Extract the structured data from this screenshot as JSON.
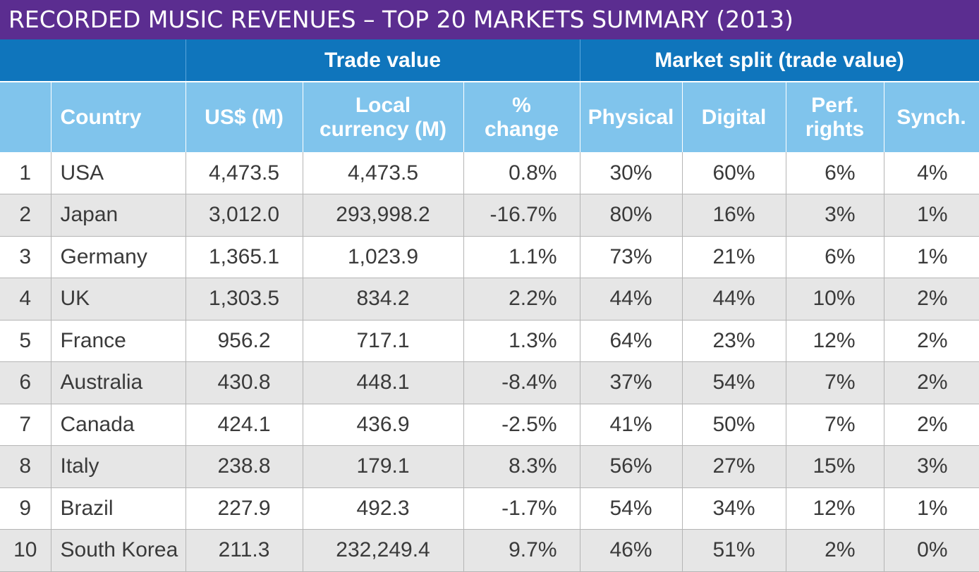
{
  "title": "RECORDED MUSIC REVENUES – TOP 20 MARKETS SUMMARY (2013)",
  "colors": {
    "title_bg": "#5b2d90",
    "group_header_bg": "#0f75bc",
    "column_header_bg": "#80c4ec",
    "alt_row_bg": "#e6e6e6"
  },
  "group_headers": {
    "trade_value": "Trade value",
    "market_split": "Market split (trade value)"
  },
  "columns": {
    "country": "Country",
    "usd": "US$ (M)",
    "local_line1": "Local",
    "local_line2": "currency (M)",
    "change_line1": "%",
    "change_line2": "change",
    "physical": "Physical",
    "digital": "Digital",
    "perf_line1": "Perf.",
    "perf_line2": "rights",
    "synch": "Synch."
  },
  "chart_data": {
    "type": "table",
    "title": "RECORDED MUSIC REVENUES – TOP 20 MARKETS SUMMARY (2013)",
    "rows": [
      {
        "rank": "1",
        "country": "USA",
        "usd": "4,473.5",
        "local": "4,473.5",
        "change": "0.8%",
        "physical": "30%",
        "digital": "60%",
        "perf": "6%",
        "synch": "4%"
      },
      {
        "rank": "2",
        "country": "Japan",
        "usd": "3,012.0",
        "local": "293,998.2",
        "change": "-16.7%",
        "physical": "80%",
        "digital": "16%",
        "perf": "3%",
        "synch": "1%"
      },
      {
        "rank": "3",
        "country": "Germany",
        "usd": "1,365.1",
        "local": "1,023.9",
        "change": "1.1%",
        "physical": "73%",
        "digital": "21%",
        "perf": "6%",
        "synch": "1%"
      },
      {
        "rank": "4",
        "country": "UK",
        "usd": "1,303.5",
        "local": "834.2",
        "change": "2.2%",
        "physical": "44%",
        "digital": "44%",
        "perf": "10%",
        "synch": "2%"
      },
      {
        "rank": "5",
        "country": "France",
        "usd": "956.2",
        "local": "717.1",
        "change": "1.3%",
        "physical": "64%",
        "digital": "23%",
        "perf": "12%",
        "synch": "2%"
      },
      {
        "rank": "6",
        "country": "Australia",
        "usd": "430.8",
        "local": "448.1",
        "change": "-8.4%",
        "physical": "37%",
        "digital": "54%",
        "perf": "7%",
        "synch": "2%"
      },
      {
        "rank": "7",
        "country": "Canada",
        "usd": "424.1",
        "local": "436.9",
        "change": "-2.5%",
        "physical": "41%",
        "digital": "50%",
        "perf": "7%",
        "synch": "2%"
      },
      {
        "rank": "8",
        "country": "Italy",
        "usd": "238.8",
        "local": "179.1",
        "change": "8.3%",
        "physical": "56%",
        "digital": "27%",
        "perf": "15%",
        "synch": "3%"
      },
      {
        "rank": "9",
        "country": "Brazil",
        "usd": "227.9",
        "local": "492.3",
        "change": "-1.7%",
        "physical": "54%",
        "digital": "34%",
        "perf": "12%",
        "synch": "1%"
      },
      {
        "rank": "10",
        "country": "South Korea",
        "usd": "211.3",
        "local": "232,249.4",
        "change": "9.7%",
        "physical": "46%",
        "digital": "51%",
        "perf": "2%",
        "synch": "0%"
      }
    ]
  }
}
